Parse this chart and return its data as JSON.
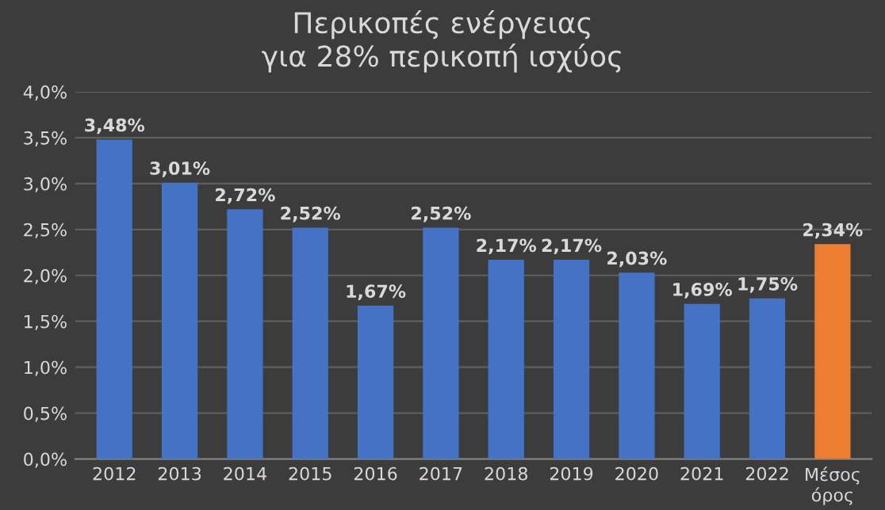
{
  "chart_data": {
    "type": "bar",
    "title": "Περικοπές ενέργειας\nγια 28% περικοπή ισχύος",
    "categories": [
      "2012",
      "2013",
      "2014",
      "2015",
      "2016",
      "2017",
      "2018",
      "2019",
      "2020",
      "2021",
      "2022",
      "Μέσος\nόρος"
    ],
    "values": [
      3.48,
      3.01,
      2.72,
      2.52,
      1.67,
      2.52,
      2.17,
      2.17,
      2.03,
      1.69,
      1.75,
      2.34
    ],
    "colors": [
      "#4472c4",
      "#4472c4",
      "#4472c4",
      "#4472c4",
      "#4472c4",
      "#4472c4",
      "#4472c4",
      "#4472c4",
      "#4472c4",
      "#4472c4",
      "#4472c4",
      "#ed7d31"
    ],
    "value_labels": [
      "3,48%",
      "3,01%",
      "2,72%",
      "2,52%",
      "1,67%",
      "2,52%",
      "2,17%",
      "2,17%",
      "2,03%",
      "1,69%",
      "1,75%",
      "2,34%"
    ],
    "ylim": [
      0,
      4
    ],
    "yticks": [
      {
        "value": 0,
        "label": "0,0%"
      },
      {
        "value": 0.5,
        "label": "0,5%"
      },
      {
        "value": 1,
        "label": "1,0%"
      },
      {
        "value": 1.5,
        "label": "1,5%"
      },
      {
        "value": 2,
        "label": "2,0%"
      },
      {
        "value": 2.5,
        "label": "2,5%"
      },
      {
        "value": 3,
        "label": "3,0%"
      },
      {
        "value": 3.5,
        "label": "3,5%"
      },
      {
        "value": 4,
        "label": "4,0%"
      }
    ],
    "grid": "y",
    "legend": false
  }
}
